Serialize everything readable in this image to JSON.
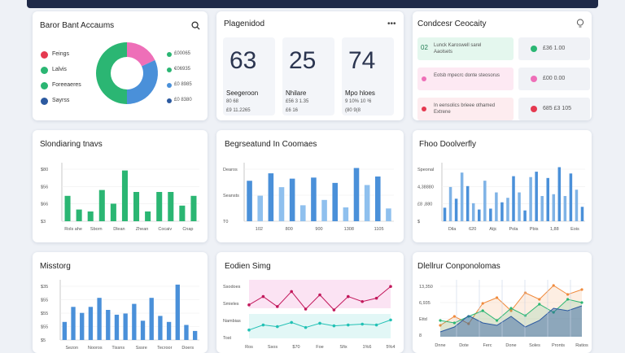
{
  "colors": {
    "green": "#2bb673",
    "blue": "#4a90d9",
    "pink": "#ee6fb8",
    "red": "#e53950",
    "navy": "#2c5aa0",
    "teal": "#3ec7c0"
  },
  "card1": {
    "title": "Baror Bant Accaums",
    "icon": "search-icon",
    "legend": [
      {
        "label": "Feings",
        "color": "#e53950"
      },
      {
        "label": "Lalvis",
        "color": "#2bb673"
      },
      {
        "label": "Foreeaeres",
        "color": "#2bb673"
      },
      {
        "label": "Sayrss",
        "color": "#2c5aa0"
      }
    ],
    "donut": [
      {
        "value": 18,
        "color": "#ee6fb8"
      },
      {
        "value": 32,
        "color": "#4a90d9"
      },
      {
        "value": 50,
        "color": "#2bb673"
      }
    ],
    "right_legend": [
      {
        "label": "£00065",
        "color": "#2bb673"
      },
      {
        "label": "€06935",
        "color": "#2bb673"
      },
      {
        "label": "£0 8985",
        "color": "#4a90d9"
      },
      {
        "label": "£0 8380",
        "color": "#2c5aa0"
      }
    ]
  },
  "card2": {
    "title": "Plagenidod",
    "icon": "more-icon",
    "stats": [
      {
        "value": "63",
        "label": "Seegeroon",
        "sub": "80 68",
        "sub2": "£9 11.2265"
      },
      {
        "value": "25",
        "label": "Nhilare",
        "sub": "£56 3 1.35",
        "sub2": "£6 16"
      },
      {
        "value": "74",
        "label": "Mpo hloes",
        "sub": "9 10% 10 ²6",
        "sub2": "(80 9(8"
      }
    ]
  },
  "card3": {
    "title": "Condcesr Ceocaity",
    "icon": "bulb-icon",
    "rows": [
      {
        "badge": "02",
        "text": "Lunck Karoswell sarel\nAaolsets",
        "value": "£36 1.00",
        "color": "#2bb673"
      },
      {
        "badge": "",
        "text": "Eotsb mpecrc donte steosorus",
        "value": "£00 0.00",
        "color": "#ee6fb8"
      },
      {
        "badge": "",
        "text": "In eensolics brieee othamed\nExtrene",
        "value": "685 £3 105",
        "color": "#e53950"
      }
    ]
  },
  "card4": {
    "title": "Slondiaring tnavs",
    "ylabels": [
      "$80",
      "$56",
      "$66",
      "$3"
    ],
    "xlabels": [
      "Rols ahe",
      "Sborn",
      "Dlean",
      "Zhean",
      "Cocaiv",
      "Cnap"
    ]
  },
  "card5": {
    "title": "Begrseatund In Coomaes",
    "ylabels": [
      "Dearos",
      "Seansts",
      "T0"
    ],
    "xlabels": [
      "102",
      "800",
      "900",
      "1308",
      "1105"
    ]
  },
  "card6": {
    "title": "Fhoo Doolverfly",
    "ylabels": [
      "Speonal",
      "4,38880",
      "£8 ,880",
      "$"
    ],
    "xlabels": [
      "Dila",
      "620",
      "Atjc",
      "Pola",
      "Pbis",
      "1,88",
      "Eois"
    ]
  },
  "card7": {
    "title": "Misstorg",
    "ylabels": [
      "$35",
      "$55",
      "$55",
      "$55",
      "$5"
    ],
    "xlabels": [
      "Sezon",
      "Nooros",
      "Tissns",
      "Sssre",
      "Tecroor",
      "Doers"
    ]
  },
  "card8": {
    "title": "Eodien Simg",
    "ylabels": [
      "Ssodoes",
      "Smieles",
      "Nambias",
      "Tost"
    ],
    "xlabels": [
      "Ros",
      "Ssos",
      "$70",
      "Foe",
      "Sfix",
      "1%6",
      "5%4"
    ]
  },
  "card9": {
    "title": "Dlellrur Conponolomas",
    "ylabels": [
      "13,350",
      "6,935",
      "Ettd",
      "8"
    ],
    "xlabels": [
      "Dnne",
      "Dote",
      "Ferc",
      "Done",
      "Soles",
      "Pronts",
      "Ratios"
    ]
  },
  "chart_data": [
    {
      "type": "bar",
      "title": "Slondiaring tnavs",
      "values": [
        2.6,
        1.2,
        1.0,
        3.2,
        1.8,
        5.2,
        3.0,
        1.0,
        3.0,
        3.0,
        1.6,
        2.6
      ]
    },
    {
      "type": "bar",
      "title": "Begrseatund In Coomaes",
      "values": [
        3.8,
        2.4,
        4.5,
        3.2,
        4.0,
        1.5,
        4.1,
        2.0,
        3.6,
        1.3,
        5.0,
        3.4,
        4.2,
        1.2
      ]
    },
    {
      "type": "bar",
      "title": "Fhoo Doolverfly",
      "values": [
        1.5,
        3.8,
        2.5,
        5.4,
        3.9,
        2.0,
        1.3,
        4.5,
        1.4,
        3.2,
        2.1,
        2.6,
        5.0,
        3.2,
        1.2,
        4.9,
        5.5,
        2.8,
        4.8,
        3.0,
        6.0,
        2.8,
        5.3,
        3.5,
        1.6
      ]
    },
    {
      "type": "bar",
      "title": "Misstorg",
      "values": [
        3.0,
        5.5,
        4.5,
        5.5,
        7.0,
        5.0,
        4.2,
        4.4,
        6.0,
        3.2,
        7.0,
        4.0,
        3.0,
        9.2,
        2.5,
        1.5
      ]
    },
    {
      "type": "line",
      "title": "Eodien Simg",
      "series": [
        {
          "values": [
            4.0,
            5.0,
            3.8,
            5.6,
            3.5,
            5.2,
            3.4,
            5.0,
            4.4,
            4.8,
            6.2
          ]
        },
        {
          "values": [
            1.0,
            1.6,
            1.4,
            1.9,
            1.3,
            1.8,
            1.5,
            1.6,
            1.7,
            1.6,
            2.2
          ]
        }
      ]
    },
    {
      "type": "area",
      "title": "Dlellrur Conponolomas",
      "series": [
        {
          "values": [
            1.4,
            2.5,
            1.6,
            4.1,
            4.8,
            3.2,
            5.4,
            4.6,
            6.3,
            5.2,
            5.8
          ]
        },
        {
          "values": [
            2.0,
            1.7,
            2.5,
            3.2,
            2.0,
            3.5,
            2.6,
            4.0,
            3.0,
            4.6,
            4.2
          ]
        },
        {
          "values": [
            0.6,
            1.2,
            2.6,
            1.7,
            1.4,
            2.5,
            1.2,
            2.0,
            3.5,
            3.2,
            3.8
          ]
        }
      ]
    }
  ]
}
